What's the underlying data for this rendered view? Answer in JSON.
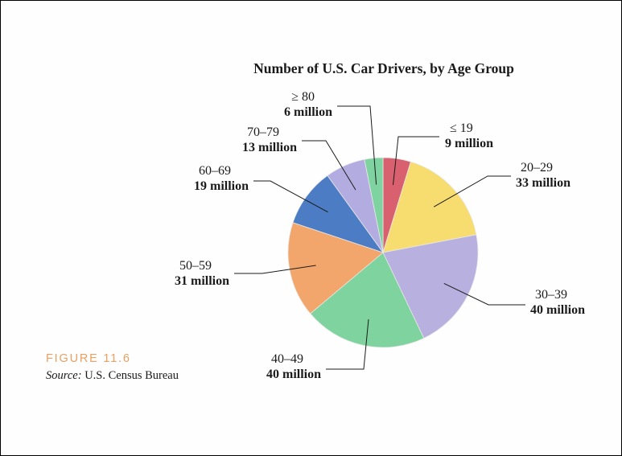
{
  "chart_data": {
    "type": "pie",
    "title": "Number of U.S. Car Drivers, by Age Group",
    "unit_label": "million",
    "categories": [
      "≤ 19",
      "20–29",
      "30–39",
      "40–49",
      "50–59",
      "60–69",
      "70–79",
      "≥ 80"
    ],
    "values": [
      9,
      33,
      40,
      40,
      31,
      19,
      13,
      6
    ],
    "value_labels": [
      "9 million",
      "33 million",
      "40 million",
      "40 million",
      "31 million",
      "19 million",
      "13 million",
      "6 million"
    ],
    "colors": [
      "#d9606e",
      "#f7dc6f",
      "#b8b0df",
      "#7fd39e",
      "#f3a66b",
      "#4c7cc4",
      "#b3ace0",
      "#7fd3a1"
    ],
    "start_angle_deg": 0,
    "direction": "clockwise"
  },
  "figure": {
    "label": "FIGURE 11.6",
    "source_prefix": "Source:",
    "source_text": " U.S. Census Bureau"
  }
}
